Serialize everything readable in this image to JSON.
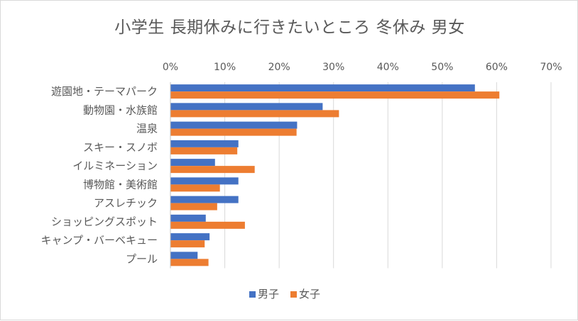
{
  "chart_data": {
    "type": "bar",
    "orientation": "horizontal",
    "title": "小学生 長期休みに行きたいところ 冬休み 男女",
    "categories": [
      "遊園地・テーマパーク",
      "動物園・水族館",
      "温泉",
      "スキー・スノボ",
      "イルミネーション",
      "博物館・美術館",
      "アスレチック",
      "ショッピングスポット",
      "キャンプ・バーベキュー",
      "プール"
    ],
    "series": [
      {
        "name": "男子",
        "color": "#4472c4",
        "values": [
          56,
          28,
          23.3,
          12.5,
          8.2,
          12.5,
          12.5,
          6.5,
          7.2,
          5
        ]
      },
      {
        "name": "女子",
        "color": "#ed7d31",
        "values": [
          60.5,
          31,
          23.2,
          12.3,
          15.5,
          9.1,
          8.6,
          13.7,
          6.3,
          7
        ]
      }
    ],
    "xlim": [
      0,
      70
    ],
    "x_ticks": [
      "0%",
      "10%",
      "20%",
      "30%",
      "40%",
      "50%",
      "60%",
      "70%"
    ],
    "x_axis_position": "top",
    "grid": true,
    "legend": "bottom",
    "xlabel": "",
    "ylabel": ""
  }
}
